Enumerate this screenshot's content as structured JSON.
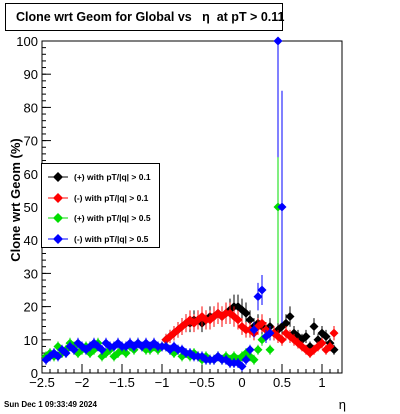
{
  "title": "Clone wrt Geom for Global vs   η  at pT > 0.11",
  "footer": "Sun Dec  1 09:33:49 2024",
  "chart_data": {
    "type": "scatter",
    "title": "Clone wrt Geom for Global vs   η  at pT > 0.11",
    "xlabel": "η",
    "ylabel": "Clone wrt Geom (%)",
    "xlim": [
      -2.5,
      1.25
    ],
    "ylim": [
      0,
      100
    ],
    "xticks": [
      -2.5,
      -2,
      -1.5,
      -1,
      -0.5,
      0,
      0.5,
      1
    ],
    "xtick_labels": [
      "−2.5",
      "−2",
      "−1.5",
      "−1",
      "−0.5",
      "0",
      "0.5",
      "1"
    ],
    "yticks": [
      0,
      10,
      20,
      30,
      40,
      50,
      60,
      70,
      80,
      90,
      100
    ],
    "grid": false,
    "legend_position": "left",
    "series": [
      {
        "name": "(+) with pT/|q| > 0.1",
        "color": "#000000",
        "x": [
          -0.95,
          -0.9,
          -0.85,
          -0.8,
          -0.75,
          -0.7,
          -0.65,
          -0.6,
          -0.55,
          -0.5,
          -0.45,
          -0.4,
          -0.35,
          -0.3,
          -0.25,
          -0.2,
          -0.15,
          -0.1,
          -0.05,
          0.0,
          0.05,
          0.1,
          0.15,
          0.2,
          0.25,
          0.3,
          0.35,
          0.4,
          0.45,
          0.5,
          0.55,
          0.6,
          0.65,
          0.7,
          0.75,
          0.8,
          0.85,
          0.9,
          0.95,
          1.0,
          1.05,
          1.1,
          1.15
        ],
        "y": [
          10,
          11,
          12,
          13,
          14,
          15,
          15,
          16,
          16,
          15,
          16,
          17,
          17,
          18,
          17,
          18,
          19,
          20,
          20,
          19,
          18,
          16,
          14,
          15,
          14,
          13,
          14,
          12,
          13,
          14,
          15,
          17,
          12,
          11,
          10,
          11,
          8,
          14,
          10,
          12,
          11,
          9,
          7
        ]
      },
      {
        "name": "(-) with pT/|q| > 0.1",
        "color": "#ff0000",
        "x": [
          -0.95,
          -0.9,
          -0.85,
          -0.8,
          -0.75,
          -0.7,
          -0.65,
          -0.6,
          -0.55,
          -0.5,
          -0.45,
          -0.4,
          -0.35,
          -0.3,
          -0.25,
          -0.2,
          -0.15,
          -0.1,
          -0.05,
          0.0,
          0.05,
          0.1,
          0.15,
          0.2,
          0.25,
          0.3,
          0.35,
          0.4,
          0.45,
          0.5,
          0.55,
          0.6,
          0.65,
          0.7,
          0.75,
          0.8,
          0.85,
          0.9,
          0.95,
          1.0,
          1.05,
          1.1,
          1.15
        ],
        "y": [
          10,
          11,
          12,
          13,
          14,
          15,
          16,
          15,
          16,
          17,
          16,
          16,
          17,
          18,
          17,
          18,
          18,
          17,
          16,
          14,
          13,
          13,
          12,
          14,
          15,
          13,
          12,
          12,
          11,
          10,
          12,
          11,
          10,
          9,
          8,
          7,
          6,
          7,
          8,
          9,
          7,
          8,
          12
        ]
      },
      {
        "name": "(+) with pT/|q| > 0.5",
        "color": "#00dd00",
        "x": [
          -2.45,
          -2.4,
          -2.35,
          -2.3,
          -2.25,
          -2.2,
          -2.15,
          -2.1,
          -2.05,
          -2.0,
          -1.95,
          -1.9,
          -1.85,
          -1.8,
          -1.75,
          -1.7,
          -1.65,
          -1.6,
          -1.55,
          -1.5,
          -1.45,
          -1.4,
          -1.35,
          -1.3,
          -1.25,
          -1.2,
          -1.15,
          -1.1,
          -1.05,
          -1.0,
          -0.95,
          -0.9,
          -0.85,
          -0.8,
          -0.75,
          -0.7,
          -0.65,
          -0.6,
          -0.55,
          -0.5,
          -0.45,
          -0.4,
          -0.35,
          -0.3,
          -0.25,
          -0.2,
          -0.15,
          -0.1,
          -0.05,
          0.0,
          0.05,
          0.1,
          0.15,
          0.2,
          0.25,
          0.3,
          0.35,
          0.45
        ],
        "y": [
          5,
          6,
          5,
          8,
          6,
          7,
          9,
          8,
          6,
          7,
          8,
          6,
          7,
          9,
          5,
          6,
          7,
          5,
          6,
          7,
          6,
          8,
          7,
          9,
          8,
          7,
          7,
          8,
          7,
          8,
          8,
          7,
          6,
          7,
          5,
          6,
          5,
          6,
          5,
          4,
          5,
          4,
          4,
          5,
          4,
          5,
          4,
          5,
          4,
          5,
          6,
          5,
          4,
          7,
          10,
          11,
          7,
          50
        ]
      },
      {
        "name": "(-) with pT/|q| > 0.5",
        "color": "#0000ff",
        "x": [
          -2.45,
          -2.4,
          -2.35,
          -2.3,
          -2.25,
          -2.2,
          -2.15,
          -2.1,
          -2.05,
          -2.0,
          -1.95,
          -1.9,
          -1.85,
          -1.8,
          -1.75,
          -1.7,
          -1.65,
          -1.6,
          -1.55,
          -1.5,
          -1.45,
          -1.4,
          -1.35,
          -1.3,
          -1.25,
          -1.2,
          -1.15,
          -1.1,
          -1.05,
          -1.0,
          -0.95,
          -0.9,
          -0.85,
          -0.8,
          -0.75,
          -0.7,
          -0.65,
          -0.6,
          -0.55,
          -0.5,
          -0.45,
          -0.4,
          -0.35,
          -0.3,
          -0.25,
          -0.2,
          -0.15,
          -0.1,
          -0.05,
          0.0,
          0.05,
          0.1,
          0.15,
          0.2,
          0.25,
          0.3,
          0.35,
          0.45,
          0.5
        ],
        "y": [
          4,
          5,
          6,
          5,
          7,
          6,
          8,
          7,
          9,
          8,
          7,
          8,
          9,
          8,
          7,
          9,
          8,
          8,
          9,
          8,
          8,
          9,
          8,
          9,
          8,
          9,
          8,
          9,
          8,
          8,
          8,
          7,
          8,
          7,
          7,
          6,
          6,
          5,
          5,
          5,
          4,
          4,
          4,
          5,
          4,
          4,
          3,
          3,
          3,
          2,
          4,
          7,
          13,
          23,
          25,
          11,
          12,
          100,
          50
        ]
      }
    ]
  }
}
